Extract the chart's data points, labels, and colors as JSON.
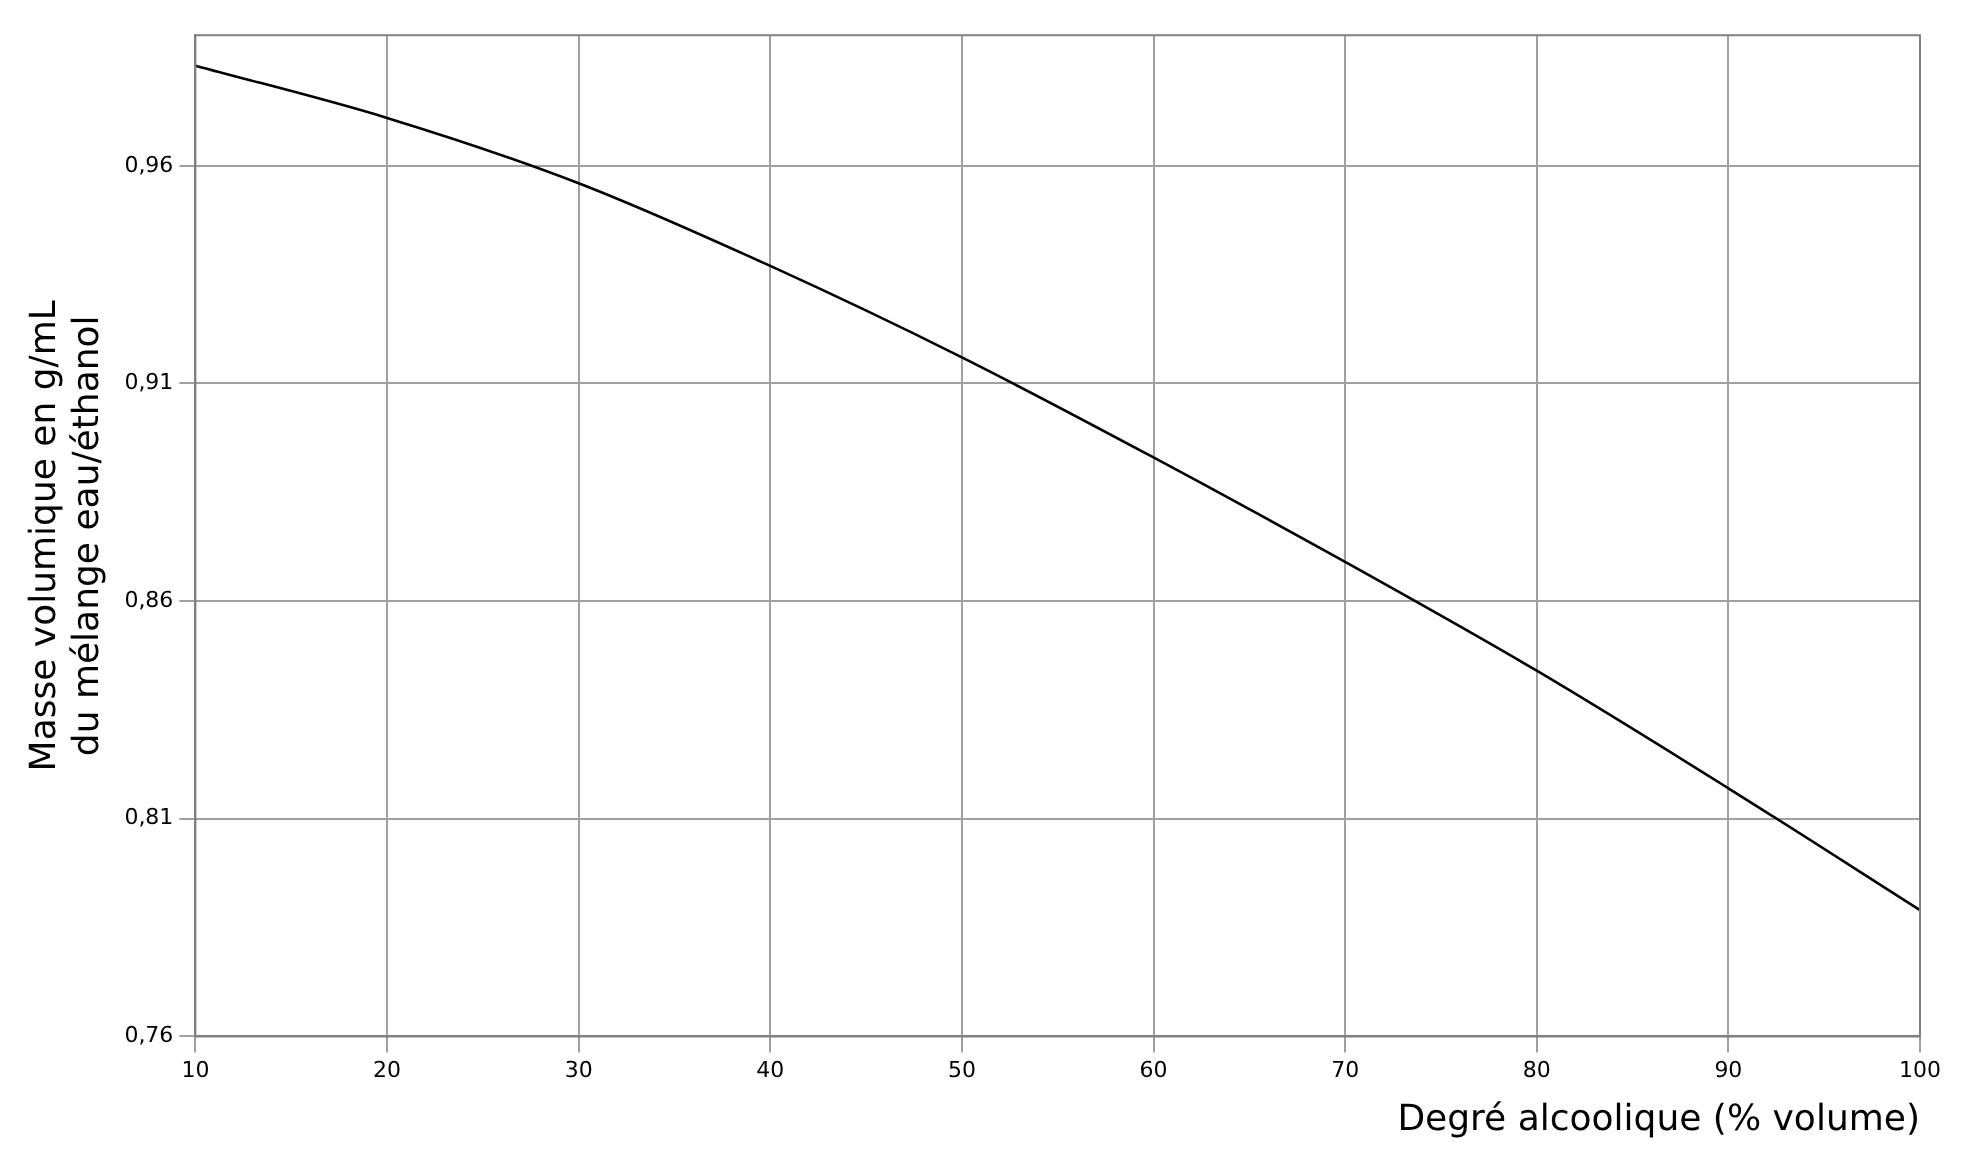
{
  "chart_data": {
    "type": "line",
    "xlabel": "Degré alcoolique (% volume)",
    "ylabel": "Masse volumique en g/mL\ndu mélange eau/éthanol",
    "x": [
      10,
      20,
      30,
      40,
      50,
      60,
      70,
      80,
      90,
      100
    ],
    "series": [
      {
        "color": "#000000",
        "values": [
          0.983,
          0.971,
          0.956,
          0.937,
          0.916,
          0.893,
          0.869,
          0.844,
          0.817,
          0.789
        ]
      }
    ],
    "xlim": [
      10,
      100
    ],
    "xticks": [
      10,
      20,
      30,
      40,
      50,
      60,
      70,
      80,
      90,
      100
    ],
    "ylim": [
      0.76,
      0.99
    ],
    "yticks": [
      {
        "value": 0.76,
        "label": "0,76"
      },
      {
        "value": 0.81,
        "label": "0,81"
      },
      {
        "value": 0.86,
        "label": "0,86"
      },
      {
        "value": 0.91,
        "label": "0,91"
      },
      {
        "value": 0.96,
        "label": "0,96"
      }
    ],
    "grid": true,
    "legend": false,
    "marker": "none",
    "line_style": "solid"
  }
}
